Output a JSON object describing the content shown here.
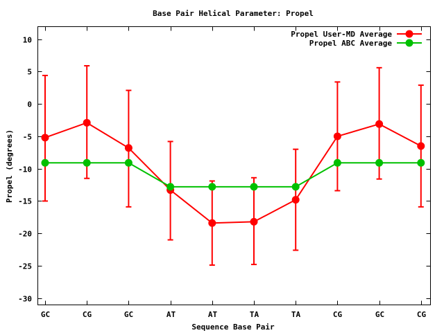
{
  "chart_data": {
    "type": "line",
    "title": "Base Pair Helical Parameter: Propel",
    "xlabel": "Sequence Base Pair",
    "ylabel": "Propel (degrees)",
    "ylim": [
      -31,
      12
    ],
    "yticks": [
      10,
      5,
      0,
      -5,
      -10,
      -15,
      -20,
      -25,
      -30
    ],
    "grid": false,
    "legend_position": "top-right",
    "categories": [
      "GC",
      "CG",
      "GC",
      "AT",
      "AT",
      "TA",
      "TA",
      "CG",
      "GC",
      "CG"
    ],
    "series": [
      {
        "name": "Propel User-MD Average",
        "color": "#ff0000",
        "values": [
          -5.2,
          -2.9,
          -6.8,
          -13.3,
          -18.4,
          -18.2,
          -14.8,
          -5.0,
          -3.1,
          -6.5
        ],
        "error_upper": [
          4.4,
          5.9,
          2.1,
          -5.8,
          -11.9,
          -11.4,
          -7.0,
          3.4,
          5.6,
          2.9
        ],
        "error_lower": [
          -15.0,
          -11.5,
          -15.9,
          -21.0,
          -24.9,
          -24.8,
          -22.6,
          -13.4,
          -11.6,
          -15.9
        ]
      },
      {
        "name": "Propel ABC Average",
        "color": "#00c000",
        "values": [
          -9.1,
          -9.1,
          -9.1,
          -12.8,
          -12.8,
          -12.8,
          -12.8,
          -9.1,
          -9.1,
          -9.1
        ]
      }
    ]
  }
}
